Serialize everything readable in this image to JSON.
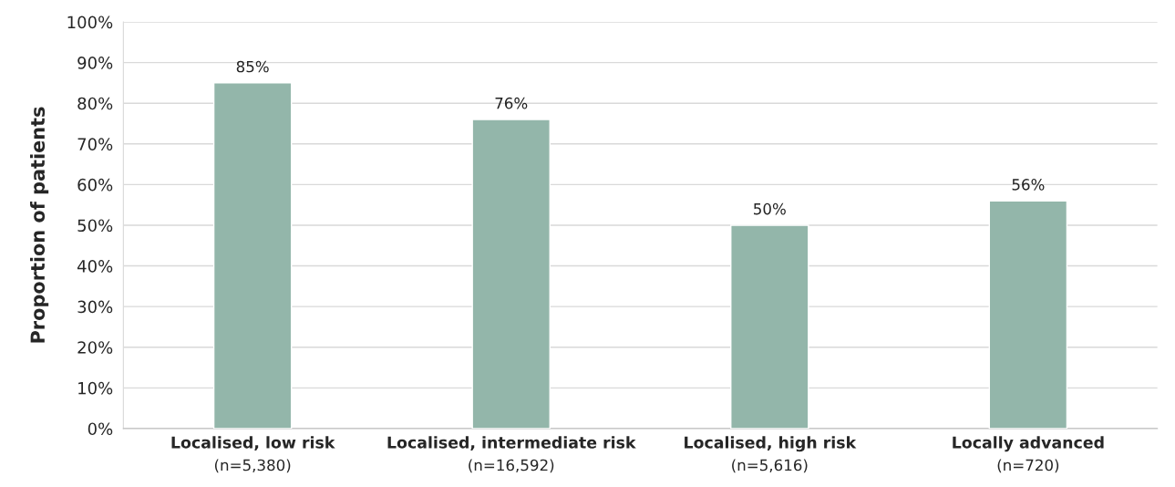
{
  "chart_data": {
    "type": "bar",
    "ylabel": "Proportion of patients",
    "categories": [
      "Localised, low risk\n(n=5,380)",
      "Localised, intermediate risk\n(n=16,592)",
      "Localised, high risk\n(n=5,616)",
      "Locally advanced\n(n=720)"
    ],
    "values": [
      85,
      76,
      50,
      56
    ],
    "color": "#93b6aa",
    "value_labels": [
      "85%",
      "76%",
      "50%",
      "56%"
    ],
    "ylim": [
      0,
      100
    ],
    "yticks": [
      {
        "value": 0,
        "label": "0%"
      },
      {
        "value": 10,
        "label": "10%"
      },
      {
        "value": 20,
        "label": "20%"
      },
      {
        "value": 30,
        "label": "30%"
      },
      {
        "value": 40,
        "label": "40%"
      },
      {
        "value": 50,
        "label": "50%"
      },
      {
        "value": 60,
        "label": "60%"
      },
      {
        "value": 70,
        "label": "70%"
      },
      {
        "value": 80,
        "label": "80%"
      },
      {
        "value": 90,
        "label": "90%"
      },
      {
        "value": 100,
        "label": "100%"
      }
    ],
    "grid": "y"
  }
}
